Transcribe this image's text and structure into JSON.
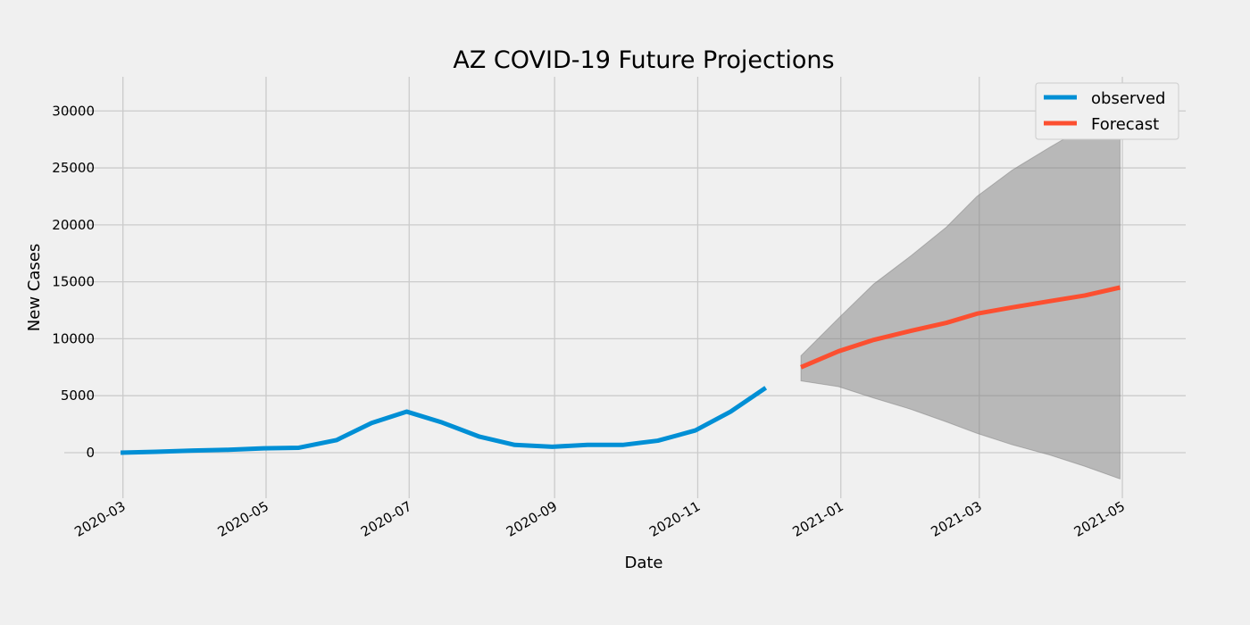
{
  "chart_data": {
    "type": "line",
    "title": "AZ COVID-19 Future Projections",
    "xlabel": "Date",
    "ylabel": "New Cases",
    "x_type": "date",
    "xlim": [
      "2020-02-05",
      "2021-05-28"
    ],
    "ylim": [
      -4000,
      33000
    ],
    "x_ticks": [
      "2020-03-01",
      "2020-05-01",
      "2020-07-01",
      "2020-09-01",
      "2020-11-01",
      "2021-01-01",
      "2021-03-01",
      "2021-05-01"
    ],
    "x_tick_labels": [
      "2020-03",
      "2020-05",
      "2020-07",
      "2020-09",
      "2020-11",
      "2021-01",
      "2021-03",
      "2021-05"
    ],
    "y_ticks": [
      0,
      5000,
      10000,
      15000,
      20000,
      25000,
      30000
    ],
    "y_tick_labels": [
      "0",
      "5000",
      "10000",
      "15000",
      "20000",
      "25000",
      "30000"
    ],
    "grid": true,
    "legend_position": "top-right",
    "series": [
      {
        "name": "observed",
        "color": "#008fd5",
        "points": [
          [
            "2020-02-29",
            0
          ],
          [
            "2020-03-15",
            80
          ],
          [
            "2020-03-31",
            180
          ],
          [
            "2020-04-15",
            250
          ],
          [
            "2020-04-30",
            380
          ],
          [
            "2020-05-15",
            430
          ],
          [
            "2020-05-31",
            1100
          ],
          [
            "2020-06-15",
            2600
          ],
          [
            "2020-06-30",
            3600
          ],
          [
            "2020-07-15",
            2650
          ],
          [
            "2020-07-31",
            1400
          ],
          [
            "2020-08-15",
            680
          ],
          [
            "2020-08-31",
            520
          ],
          [
            "2020-09-15",
            680
          ],
          [
            "2020-09-30",
            680
          ],
          [
            "2020-10-15",
            1050
          ],
          [
            "2020-10-31",
            1950
          ],
          [
            "2020-11-15",
            3600
          ],
          [
            "2020-11-30",
            5700
          ]
        ]
      },
      {
        "name": "Forecast",
        "color": "#fc4f30",
        "points": [
          [
            "2020-12-15",
            7500
          ],
          [
            "2020-12-31",
            8900
          ],
          [
            "2021-01-15",
            9900
          ],
          [
            "2021-01-31",
            10700
          ],
          [
            "2021-02-15",
            11400
          ],
          [
            "2021-02-28",
            12200
          ],
          [
            "2021-03-15",
            12750
          ],
          [
            "2021-03-31",
            13300
          ],
          [
            "2021-04-15",
            13800
          ],
          [
            "2021-04-30",
            14500
          ]
        ]
      }
    ],
    "confidence_interval": {
      "color": "#7f7f7f",
      "upper": [
        [
          "2020-12-15",
          8500
        ],
        [
          "2020-12-31",
          11800
        ],
        [
          "2021-01-15",
          14800
        ],
        [
          "2021-01-31",
          17300
        ],
        [
          "2021-02-15",
          19800
        ],
        [
          "2021-02-28",
          22500
        ],
        [
          "2021-03-15",
          24800
        ],
        [
          "2021-03-31",
          26800
        ],
        [
          "2021-04-15",
          28600
        ],
        [
          "2021-04-30",
          30300
        ]
      ],
      "lower": [
        [
          "2020-12-15",
          6300
        ],
        [
          "2020-12-31",
          5800
        ],
        [
          "2021-01-15",
          4800
        ],
        [
          "2021-01-31",
          3800
        ],
        [
          "2021-02-15",
          2700
        ],
        [
          "2021-02-28",
          1700
        ],
        [
          "2021-03-15",
          700
        ],
        [
          "2021-03-31",
          -200
        ],
        [
          "2021-04-15",
          -1200
        ],
        [
          "2021-04-30",
          -2300
        ]
      ]
    }
  }
}
